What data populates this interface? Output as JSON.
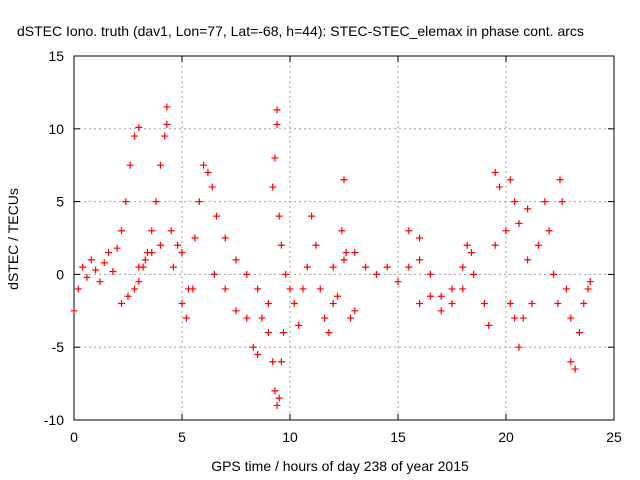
{
  "chart_data": {
    "type": "scatter",
    "title": "dSTEC Iono. truth (dav1, Lon=77, Lat=-68, h=44): STEC-STEC_elemax in phase cont. arcs",
    "xlabel": "GPS time / hours of day 238 of year 2015",
    "ylabel": "dSTEC  / TECUs",
    "xlim": [
      0,
      25
    ],
    "ylim": [
      -10,
      15
    ],
    "xticks": [
      0,
      5,
      10,
      15,
      20,
      25
    ],
    "yticks": [
      -10,
      -5,
      0,
      5,
      10,
      15
    ],
    "grid": true,
    "marker": "plus",
    "color": "#ff0000",
    "series": [
      {
        "values": [
          [
            0.0,
            -2.5
          ],
          [
            0.2,
            -1.0
          ],
          [
            0.4,
            0.5
          ],
          [
            0.6,
            -0.2
          ],
          [
            0.8,
            1.0
          ],
          [
            1.0,
            0.3
          ],
          [
            1.2,
            -0.5
          ],
          [
            1.4,
            0.8
          ],
          [
            1.6,
            1.5
          ],
          [
            1.8,
            0.2
          ],
          [
            2.0,
            1.8
          ],
          [
            2.2,
            3.0
          ],
          [
            2.4,
            5.0
          ],
          [
            2.6,
            7.5
          ],
          [
            2.8,
            9.5
          ],
          [
            3.0,
            10.1
          ]
        ]
      },
      {
        "values": [
          [
            2.2,
            -2.0
          ],
          [
            2.5,
            -1.5
          ],
          [
            2.8,
            -1.0
          ],
          [
            3.0,
            -0.5
          ],
          [
            3.2,
            0.5
          ],
          [
            3.4,
            1.5
          ],
          [
            3.6,
            3.0
          ],
          [
            3.8,
            5.0
          ],
          [
            4.0,
            7.5
          ],
          [
            4.2,
            9.5
          ],
          [
            4.3,
            10.3
          ],
          [
            4.3,
            11.5
          ]
        ]
      },
      {
        "values": [
          [
            3.0,
            0.5
          ],
          [
            3.3,
            1.0
          ],
          [
            3.6,
            1.5
          ],
          [
            4.0,
            2.0
          ],
          [
            4.5,
            3.0
          ],
          [
            5.0,
            1.5
          ],
          [
            5.3,
            -1.0
          ],
          [
            5.6,
            2.5
          ],
          [
            5.8,
            5.0
          ],
          [
            6.0,
            7.5
          ],
          [
            6.2,
            7.0
          ],
          [
            6.4,
            6.0
          ],
          [
            6.6,
            4.0
          ],
          [
            7.0,
            2.5
          ],
          [
            7.5,
            1.0
          ],
          [
            8.0,
            0.0
          ],
          [
            8.5,
            -1.0
          ],
          [
            9.0,
            -2.0
          ]
        ]
      },
      {
        "values": [
          [
            4.6,
            0.5
          ],
          [
            4.8,
            2.0
          ],
          [
            5.0,
            -2.0
          ],
          [
            5.2,
            -3.0
          ],
          [
            5.5,
            -1.0
          ],
          [
            6.5,
            0.0
          ],
          [
            7.0,
            -1.0
          ],
          [
            7.5,
            -2.5
          ],
          [
            8.0,
            -3.0
          ],
          [
            8.3,
            -5.0
          ],
          [
            8.5,
            -5.5
          ],
          [
            8.7,
            -3.0
          ],
          [
            9.0,
            -4.0
          ],
          [
            9.2,
            -6.0
          ],
          [
            9.3,
            -8.0
          ],
          [
            9.4,
            -9.0
          ],
          [
            9.5,
            -8.5
          ],
          [
            9.6,
            -6.0
          ],
          [
            9.7,
            -4.0
          ]
        ]
      },
      {
        "values": [
          [
            9.2,
            6.0
          ],
          [
            9.3,
            8.0
          ],
          [
            9.4,
            10.3
          ],
          [
            9.4,
            11.3
          ],
          [
            9.5,
            4.0
          ],
          [
            9.6,
            2.0
          ],
          [
            9.8,
            0.0
          ],
          [
            10.0,
            -1.0
          ],
          [
            10.2,
            -2.0
          ],
          [
            10.4,
            -3.5
          ]
        ]
      },
      {
        "values": [
          [
            10.6,
            -1.0
          ],
          [
            10.8,
            0.5
          ],
          [
            11.0,
            4.0
          ],
          [
            11.2,
            2.0
          ],
          [
            11.4,
            -1.0
          ],
          [
            11.6,
            -3.0
          ],
          [
            11.8,
            -4.0
          ],
          [
            12.0,
            -2.0
          ],
          [
            12.2,
            -1.5
          ],
          [
            12.4,
            3.0
          ],
          [
            12.6,
            1.5
          ],
          [
            12.8,
            -3.0
          ],
          [
            13.0,
            -2.5
          ],
          [
            12.5,
            6.5
          ]
        ]
      },
      {
        "values": [
          [
            12.0,
            0.5
          ],
          [
            12.5,
            1.0
          ],
          [
            13.0,
            1.5
          ],
          [
            13.5,
            0.5
          ],
          [
            14.0,
            0.0
          ],
          [
            14.5,
            0.5
          ],
          [
            15.0,
            -0.5
          ],
          [
            15.5,
            0.5
          ],
          [
            16.0,
            1.0
          ],
          [
            15.5,
            3.0
          ],
          [
            16.0,
            2.5
          ],
          [
            16.5,
            0.0
          ],
          [
            17.0,
            -1.5
          ],
          [
            17.5,
            -1.0
          ],
          [
            18.0,
            0.5
          ],
          [
            18.2,
            2.0
          ],
          [
            18.4,
            1.5
          ]
        ]
      },
      {
        "values": [
          [
            16.0,
            -2.0
          ],
          [
            16.5,
            -1.5
          ],
          [
            17.0,
            -2.5
          ],
          [
            17.5,
            -2.0
          ],
          [
            18.0,
            -1.0
          ],
          [
            18.5,
            0.0
          ],
          [
            19.0,
            -2.0
          ],
          [
            19.2,
            -3.5
          ],
          [
            19.5,
            2.0
          ],
          [
            19.5,
            7.0
          ],
          [
            19.7,
            6.0
          ],
          [
            20.0,
            3.0
          ],
          [
            20.2,
            -2.0
          ],
          [
            20.4,
            -3.0
          ],
          [
            20.6,
            -5.0
          ],
          [
            20.8,
            -3.0
          ],
          [
            21.0,
            1.0
          ],
          [
            21.2,
            -2.0
          ]
        ]
      },
      {
        "values": [
          [
            20.2,
            6.5
          ],
          [
            20.4,
            5.0
          ],
          [
            20.6,
            3.5
          ],
          [
            21.0,
            4.5
          ],
          [
            21.5,
            2.0
          ],
          [
            21.8,
            5.0
          ],
          [
            22.0,
            3.0
          ],
          [
            22.2,
            0.0
          ],
          [
            22.4,
            -2.0
          ],
          [
            22.5,
            6.5
          ],
          [
            22.6,
            5.0
          ],
          [
            22.8,
            -1.0
          ],
          [
            23.0,
            -3.0
          ],
          [
            23.0,
            -6.0
          ],
          [
            23.2,
            -6.5
          ],
          [
            23.4,
            -4.0
          ],
          [
            23.6,
            -2.0
          ],
          [
            23.8,
            -1.0
          ],
          [
            23.9,
            -0.5
          ]
        ]
      }
    ]
  }
}
